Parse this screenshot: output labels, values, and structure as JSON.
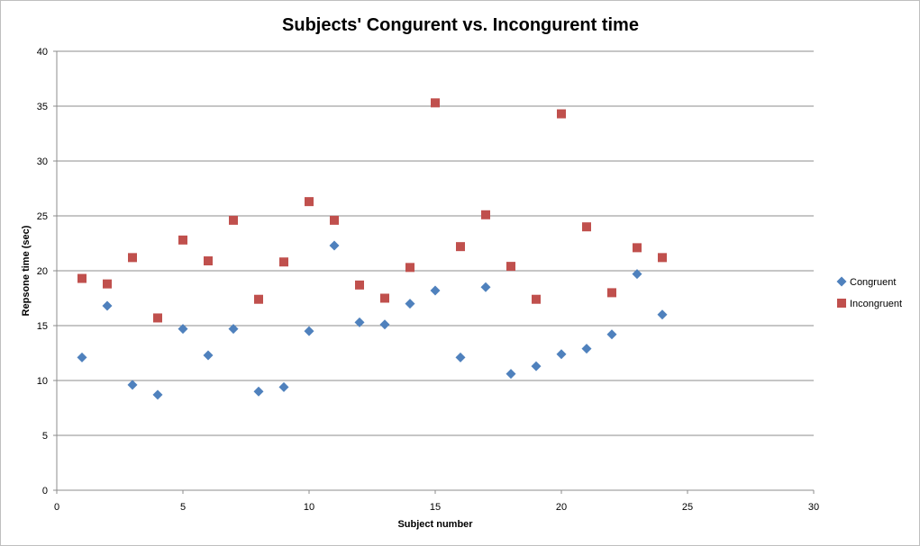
{
  "chart_data": {
    "type": "scatter",
    "title": "Subjects' Congurent vs. Incongurent time",
    "xlabel": "Subject number",
    "ylabel": "Repsone time (sec)",
    "xlim": [
      0,
      30
    ],
    "ylim": [
      0,
      40
    ],
    "xticks": [
      0,
      5,
      10,
      15,
      20,
      25,
      30
    ],
    "yticks": [
      0,
      5,
      10,
      15,
      20,
      25,
      30,
      35,
      40
    ],
    "grid": "horizontal",
    "legend_position": "right",
    "series": [
      {
        "name": "Congruent",
        "marker": "diamond",
        "color": "#4F81BD",
        "x": [
          1,
          2,
          3,
          4,
          5,
          6,
          7,
          8,
          9,
          10,
          11,
          12,
          13,
          14,
          15,
          16,
          17,
          18,
          19,
          20,
          21,
          22,
          23,
          24
        ],
        "y": [
          12.1,
          16.8,
          9.6,
          8.7,
          14.7,
          12.3,
          14.7,
          9.0,
          9.4,
          14.5,
          22.3,
          15.3,
          15.1,
          17.0,
          18.2,
          12.1,
          18.5,
          10.6,
          11.3,
          12.4,
          12.9,
          14.2,
          19.7,
          16.0
        ]
      },
      {
        "name": "Incongruent",
        "marker": "square",
        "color": "#C0504D",
        "x": [
          1,
          2,
          3,
          4,
          5,
          6,
          7,
          8,
          9,
          10,
          11,
          12,
          13,
          14,
          15,
          16,
          17,
          18,
          19,
          20,
          21,
          22,
          23,
          24
        ],
        "y": [
          19.3,
          18.8,
          21.2,
          15.7,
          22.8,
          20.9,
          24.6,
          17.4,
          20.8,
          26.3,
          24.6,
          18.7,
          17.5,
          20.3,
          35.3,
          22.2,
          25.1,
          20.4,
          17.4,
          34.3,
          24.0,
          18.0,
          22.1,
          21.2
        ]
      }
    ]
  }
}
